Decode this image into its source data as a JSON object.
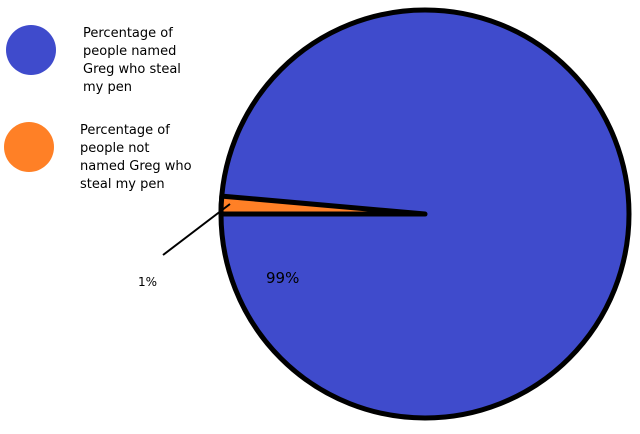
{
  "chart_data": {
    "type": "pie",
    "title": "",
    "slices": [
      {
        "name": "Percentage of people named Greg who steal my pen",
        "value": 99,
        "label": "99%",
        "color": "#3f4bcc"
      },
      {
        "name": "Percentage of people not named Greg who steal my pen",
        "value": 1,
        "label": "1%",
        "color": "#ff8026"
      }
    ],
    "legend": {
      "placement": "top-left",
      "entries": [
        {
          "lines": [
            "Percentage of",
            "people named",
            "Greg who steal",
            "my pen"
          ],
          "color": "#3f4bcc"
        },
        {
          "lines": [
            "Percentage of",
            "people not",
            "named Greg who",
            "steal my pen"
          ],
          "color": "#ff8026"
        }
      ]
    },
    "outline_color": "#000000"
  }
}
